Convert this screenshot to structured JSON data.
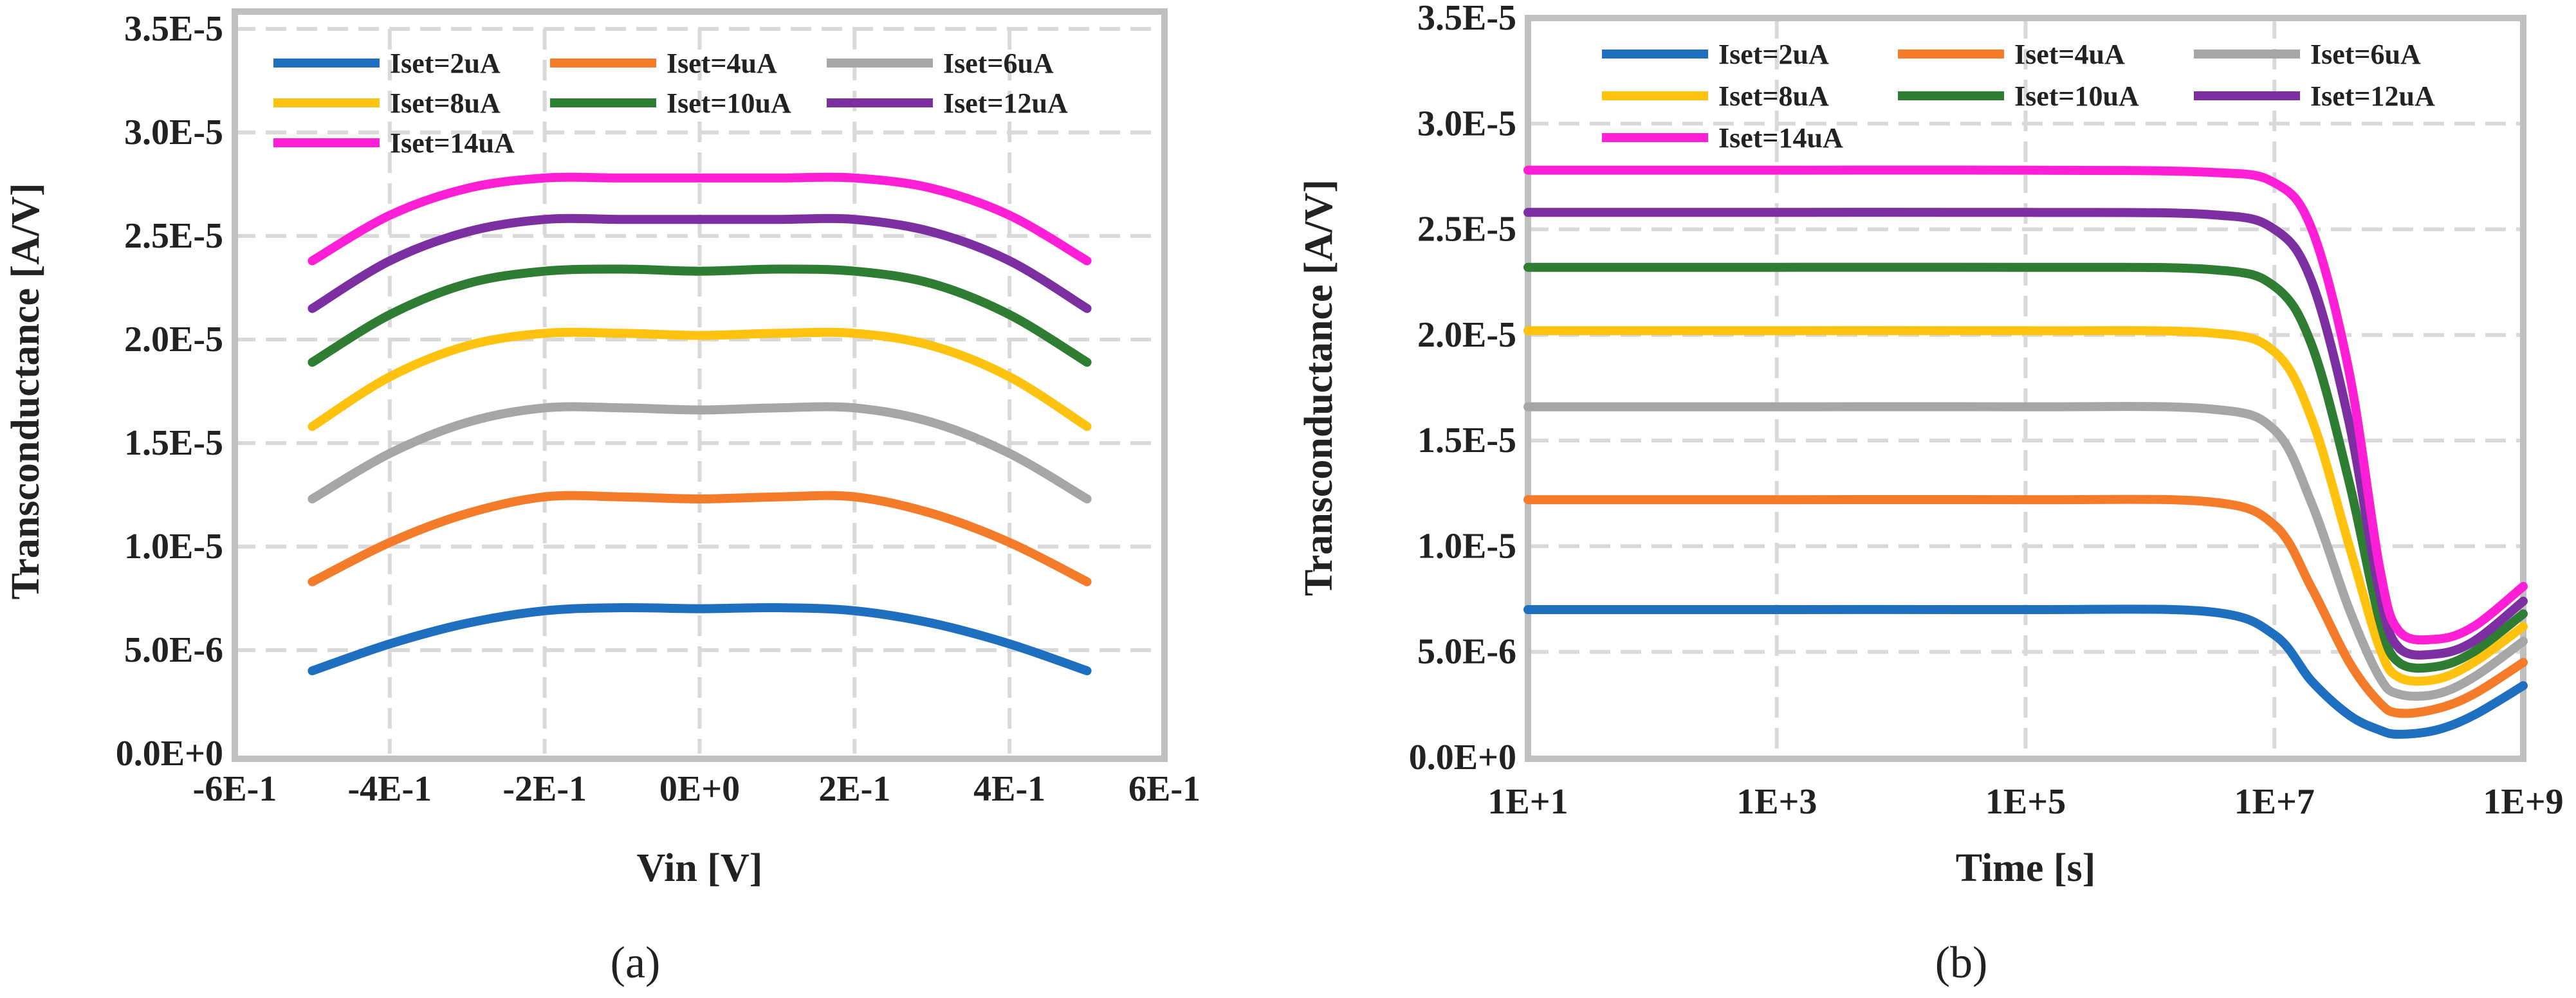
{
  "colors": {
    "frame": "#bfbfbf",
    "grid": "#d9d9d9",
    "text": "#222222"
  },
  "series_meta": [
    {
      "name": "Iset=2uA",
      "color": "#1f6fc0"
    },
    {
      "name": "Iset=4uA",
      "color": "#f47b2a"
    },
    {
      "name": "Iset=6uA",
      "color": "#a6a6a6"
    },
    {
      "name": "Iset=8uA",
      "color": "#ffc20e"
    },
    {
      "name": "Iset=10uA",
      "color": "#2e7d32"
    },
    {
      "name": "Iset=12uA",
      "color": "#7b2fa0"
    },
    {
      "name": "Iset=14uA",
      "color": "#ff1fd6"
    }
  ],
  "chart_data": [
    {
      "type": "line",
      "panel_label": "(a)",
      "xlabel": "Vin [V]",
      "ylabel": "Transconductance [A/V]",
      "xscale": "linear",
      "xlim": [
        -0.6,
        0.6
      ],
      "ylim": [
        0,
        3.5e-05
      ],
      "xticks": [
        "-6E-1",
        "-4E-1",
        "-2E-1",
        "0E+0",
        "2E-1",
        "4E-1",
        "6E-1"
      ],
      "yticks": [
        "0.0E+0",
        "5.0E-6",
        "1.0E-5",
        "1.5E-5",
        "2.0E-5",
        "2.5E-5",
        "3.0E-5",
        "3.5E-5"
      ],
      "grid": true,
      "legend": "top",
      "x": [
        -0.5,
        -0.4,
        -0.3,
        -0.2,
        -0.1,
        0,
        0.1,
        0.2,
        0.3,
        0.4,
        0.5
      ],
      "series": [
        {
          "name": "Iset=2uA",
          "values": [
            4e-06,
            5.3e-06,
            6.3e-06,
            6.9e-06,
            7.05e-06,
            7e-06,
            7.05e-06,
            6.9e-06,
            6.3e-06,
            5.3e-06,
            4e-06
          ]
        },
        {
          "name": "Iset=4uA",
          "values": [
            8.3e-06,
            1.02e-05,
            1.16e-05,
            1.24e-05,
            1.24e-05,
            1.23e-05,
            1.24e-05,
            1.24e-05,
            1.16e-05,
            1.02e-05,
            8.3e-06
          ]
        },
        {
          "name": "Iset=6uA",
          "values": [
            1.23e-05,
            1.45e-05,
            1.6e-05,
            1.67e-05,
            1.67e-05,
            1.66e-05,
            1.67e-05,
            1.67e-05,
            1.6e-05,
            1.45e-05,
            1.23e-05
          ]
        },
        {
          "name": "Iset=8uA",
          "values": [
            1.58e-05,
            1.82e-05,
            1.97e-05,
            2.03e-05,
            2.03e-05,
            2.02e-05,
            2.03e-05,
            2.03e-05,
            1.97e-05,
            1.82e-05,
            1.58e-05
          ]
        },
        {
          "name": "Iset=10uA",
          "values": [
            1.89e-05,
            2.12e-05,
            2.27e-05,
            2.33e-05,
            2.34e-05,
            2.33e-05,
            2.34e-05,
            2.33e-05,
            2.27e-05,
            2.12e-05,
            1.89e-05
          ]
        },
        {
          "name": "Iset=12uA",
          "values": [
            2.15e-05,
            2.38e-05,
            2.52e-05,
            2.58e-05,
            2.58e-05,
            2.58e-05,
            2.58e-05,
            2.58e-05,
            2.52e-05,
            2.38e-05,
            2.15e-05
          ]
        },
        {
          "name": "Iset=14uA",
          "values": [
            2.38e-05,
            2.6e-05,
            2.73e-05,
            2.78e-05,
            2.78e-05,
            2.78e-05,
            2.78e-05,
            2.78e-05,
            2.73e-05,
            2.6e-05,
            2.38e-05
          ]
        }
      ]
    },
    {
      "type": "line",
      "panel_label": "(b)",
      "xlabel": "Time [s]",
      "ylabel": "Transconductance [A/V]",
      "xscale": "log",
      "xlim": [
        10,
        1000000000
      ],
      "ylim": [
        0,
        3.5e-05
      ],
      "xticks": [
        "1E+1",
        "1E+3",
        "1E+5",
        "1E+7",
        "1E+9"
      ],
      "yticks": [
        "0.0E+0",
        "5.0E-6",
        "1.0E-5",
        "1.5E-5",
        "2.0E-5",
        "2.5E-5",
        "3.0E-5",
        "3.5E-5"
      ],
      "grid": true,
      "legend": "top",
      "x": [
        10,
        1000,
        100000,
        3000000,
        10000000,
        20000000,
        40000000,
        70000000,
        100000000,
        200000000,
        400000000,
        1000000000
      ],
      "series": [
        {
          "name": "Iset=2uA",
          "values": [
            7e-06,
            7e-06,
            7e-06,
            6.9e-06,
            5.8e-06,
            3.6e-06,
            2e-06,
            1.3e-06,
            1.1e-06,
            1.3e-06,
            2e-06,
            3.4e-06
          ]
        },
        {
          "name": "Iset=4uA",
          "values": [
            1.22e-05,
            1.22e-05,
            1.22e-05,
            1.21e-05,
            1.1e-05,
            8e-06,
            4.5e-06,
            2.6e-06,
            2.1e-06,
            2.3e-06,
            3e-06,
            4.5e-06
          ]
        },
        {
          "name": "Iset=6uA",
          "values": [
            1.66e-05,
            1.66e-05,
            1.66e-05,
            1.65e-05,
            1.55e-05,
            1.2e-05,
            7e-06,
            3.8e-06,
            3e-06,
            3e-06,
            3.8e-06,
            5.5e-06
          ]
        },
        {
          "name": "Iset=8uA",
          "values": [
            2.02e-05,
            2.02e-05,
            2.02e-05,
            2.01e-05,
            1.92e-05,
            1.6e-05,
            1e-05,
            5.2e-06,
            3.8e-06,
            3.7e-06,
            4.5e-06,
            6.2e-06
          ]
        },
        {
          "name": "Iset=10uA",
          "values": [
            2.32e-05,
            2.32e-05,
            2.32e-05,
            2.31e-05,
            2.23e-05,
            1.95e-05,
            1.3e-05,
            6.5e-06,
            4.5e-06,
            4.3e-06,
            5e-06,
            6.8e-06
          ]
        },
        {
          "name": "Iset=12uA",
          "values": [
            2.58e-05,
            2.58e-05,
            2.58e-05,
            2.57e-05,
            2.5e-05,
            2.25e-05,
            1.58e-05,
            7.8e-06,
            5.2e-06,
            4.9e-06,
            5.5e-06,
            7.4e-06
          ]
        },
        {
          "name": "Iset=14uA",
          "values": [
            2.78e-05,
            2.78e-05,
            2.78e-05,
            2.77e-05,
            2.72e-05,
            2.5e-05,
            1.82e-05,
            9e-06,
            6e-06,
            5.6e-06,
            6.2e-06,
            8.1e-06
          ]
        }
      ]
    }
  ]
}
